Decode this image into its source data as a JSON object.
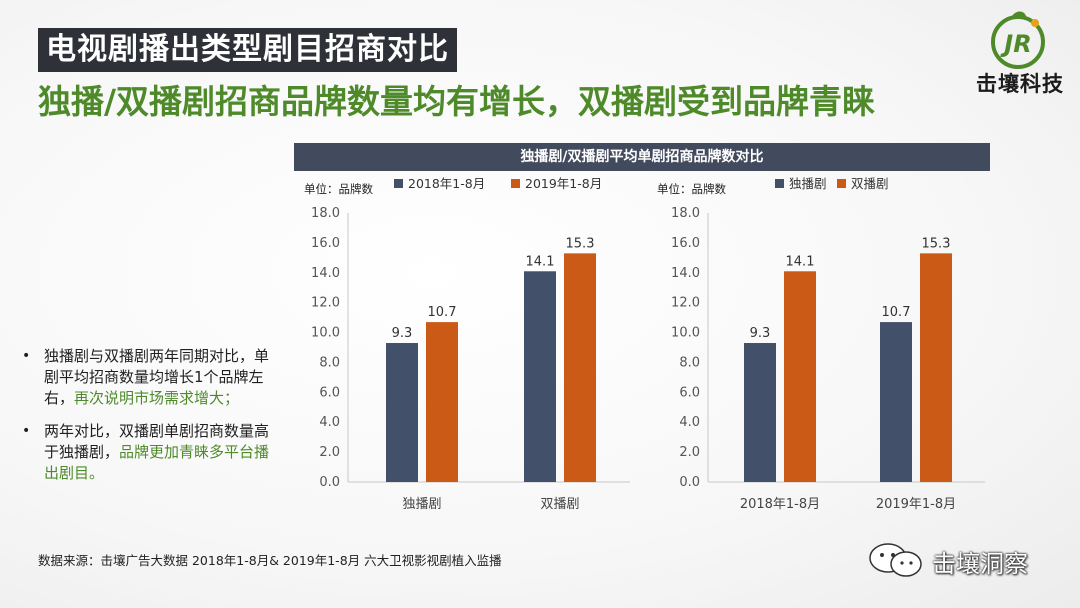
{
  "title": "电视剧播出类型剧目招商对比",
  "subtitle": "独播/双播剧招商品牌数量均有增长，双播剧受到品牌青睐",
  "logo": {
    "text": "击壤科技",
    "mark_text": "JR",
    "colors": {
      "mark": "#4e8a2a",
      "accent": "#e6a21a"
    }
  },
  "chart_header": "独播剧/双播剧平均单剧招商品牌数对比",
  "colors": {
    "series_dark": "#43506a",
    "series_orange": "#cc5a17",
    "highlight": "#4e8a2a",
    "header_bg": "#424a5e"
  },
  "chart_data": [
    {
      "type": "bar",
      "unit": "单位：品牌数",
      "categories": [
        "独播剧",
        "双播剧"
      ],
      "series": [
        {
          "name": "2018年1-8月",
          "values": [
            9.3,
            14.1
          ],
          "color": "#43506a"
        },
        {
          "name": "2019年1-8月",
          "values": [
            10.7,
            15.3
          ],
          "color": "#cc5a17"
        }
      ],
      "ylim": [
        0,
        18
      ],
      "yticks": [
        "0.0",
        "2.0",
        "4.0",
        "6.0",
        "8.0",
        "10.0",
        "12.0",
        "14.0",
        "16.0",
        "18.0"
      ],
      "grid": false,
      "legend": "top"
    },
    {
      "type": "bar",
      "unit": "单位：品牌数",
      "categories": [
        "2018年1-8月",
        "2019年1-8月"
      ],
      "series": [
        {
          "name": "独播剧",
          "values": [
            9.3,
            10.7
          ],
          "color": "#43506a"
        },
        {
          "name": "双播剧",
          "values": [
            14.1,
            15.3
          ],
          "color": "#cc5a17"
        }
      ],
      "ylim": [
        0,
        18
      ],
      "yticks": [
        "0.0",
        "2.0",
        "4.0",
        "6.0",
        "8.0",
        "10.0",
        "12.0",
        "14.0",
        "16.0",
        "18.0"
      ],
      "grid": false,
      "legend": "top"
    }
  ],
  "bullets": [
    {
      "text": "独播剧与双播剧两年同期对比，单剧平均招商数量均增长1个品牌左右，",
      "highlight": "再次说明市场需求增大；"
    },
    {
      "text": "两年对比，双播剧单剧招商数量高于独播剧，",
      "highlight": "品牌更加青睐多平台播出剧目。"
    }
  ],
  "source": "数据来源：击壤广告大数据 2018年1-8月& 2019年1-8月 六大卫视影视剧植入监播",
  "wechat": {
    "text": "击壤洞察",
    "icon": "wechat-icon"
  }
}
